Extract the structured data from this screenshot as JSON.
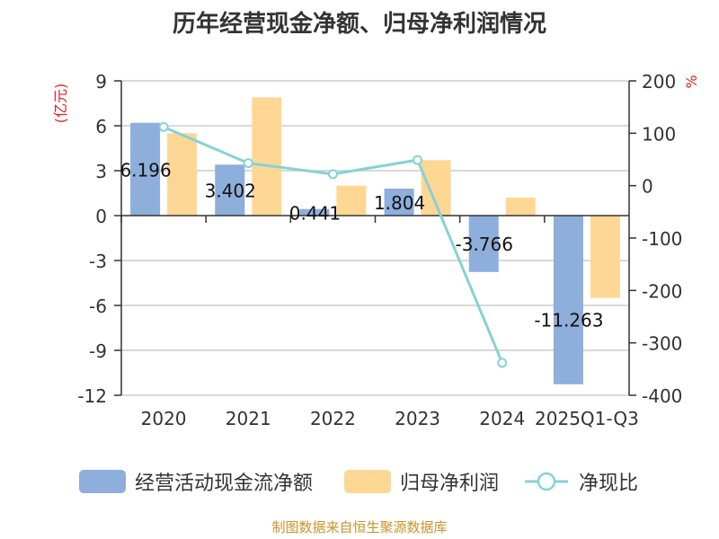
{
  "chart_data": {
    "type": "bar",
    "title": "历年经营现金净额、归母净利润情况",
    "categories": [
      "2020",
      "2021",
      "2022",
      "2023",
      "2024",
      "2025Q1-Q3"
    ],
    "series": [
      {
        "name": "经营活动现金流净额",
        "axis": "left",
        "color": "#8eaedb",
        "values": [
          6.196,
          3.402,
          0.441,
          1.804,
          -3.766,
          -11.263
        ],
        "labels": [
          "6.196",
          "3.402",
          "0.441",
          "1.804",
          "-3.766",
          "-11.263"
        ]
      },
      {
        "name": "归母净利润",
        "axis": "left",
        "color": "#ffd794",
        "values": [
          5.5,
          7.9,
          2.0,
          3.7,
          1.2,
          -5.5
        ]
      },
      {
        "name": "净现比",
        "type": "line",
        "axis": "right",
        "color": "#86d2d6",
        "values": [
          112,
          43,
          22,
          49,
          -338,
          null
        ]
      }
    ],
    "ylabel": "(亿元)",
    "y2label": "%",
    "ylim": [
      -12,
      9
    ],
    "yticks": [
      "9",
      "6",
      "3",
      "0",
      "-3",
      "-6",
      "-9",
      "-12"
    ],
    "y2lim": [
      -400,
      200
    ],
    "y2ticks": [
      "200",
      "100",
      "0",
      "-100",
      "-200",
      "-300",
      "-400"
    ],
    "grid": true,
    "legend_position": "bottom"
  },
  "source": "制图数据来自恒生聚源数据库"
}
